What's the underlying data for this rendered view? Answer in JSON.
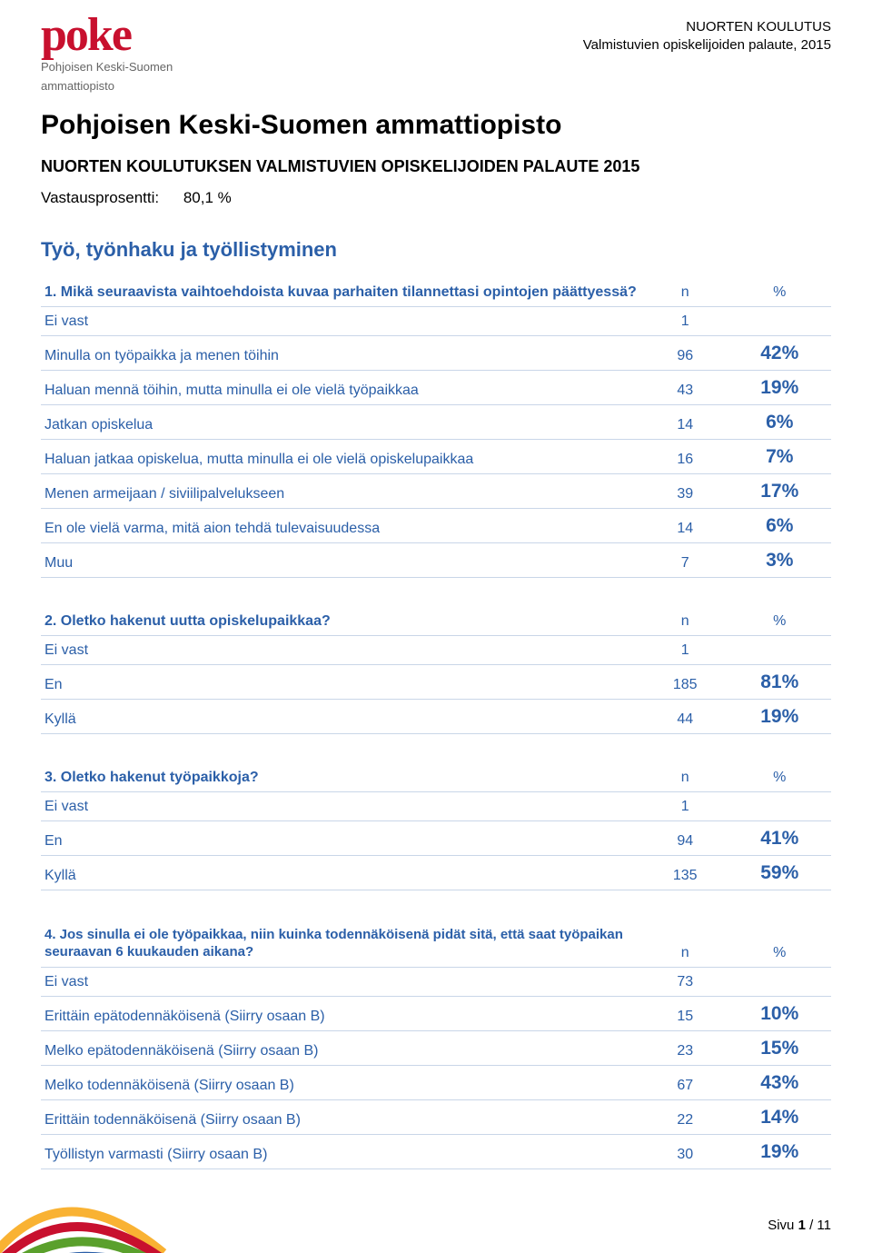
{
  "header": {
    "right1": "NUORTEN KOULUTUS",
    "right2": "Valmistuvien opiskelijoiden palaute, 2015",
    "logo_main": "poke",
    "logo_sub1": "Pohjoisen Keski-Suomen",
    "logo_sub2": "ammattiopisto"
  },
  "title": "Pohjoisen Keski-Suomen ammattiopisto",
  "subtitle": "NUORTEN KOULUTUKSEN VALMISTUVIEN OPISKELIJOIDEN PALAUTE 2015",
  "response_rate_label": "Vastausprosentti:",
  "response_rate_value": "80,1 %",
  "section": "Työ, työnhaku ja työllistyminen",
  "n_label": "n",
  "pct_label": "%",
  "q1": {
    "title": "1. Mikä seuraavista vaihtoehdoista kuvaa parhaiten tilannettasi opintojen päättyessä?",
    "rows": [
      {
        "label": "Ei vast",
        "n": "1",
        "pct": ""
      },
      {
        "label": "Minulla on työpaikka ja menen töihin",
        "n": "96",
        "pct": "42%"
      },
      {
        "label": "Haluan mennä töihin, mutta minulla ei ole vielä työpaikkaa",
        "n": "43",
        "pct": "19%"
      },
      {
        "label": "Jatkan opiskelua",
        "n": "14",
        "pct": "6%"
      },
      {
        "label": "Haluan jatkaa opiskelua, mutta minulla ei ole vielä opiskelupaikkaa",
        "n": "16",
        "pct": "7%"
      },
      {
        "label": "Menen armeijaan / siviilipalvelukseen",
        "n": "39",
        "pct": "17%"
      },
      {
        "label": "En ole vielä varma, mitä aion tehdä tulevaisuudessa",
        "n": "14",
        "pct": "6%"
      },
      {
        "label": "Muu",
        "n": "7",
        "pct": "3%"
      }
    ]
  },
  "q2": {
    "title": "2. Oletko hakenut uutta opiskelupaikkaa?",
    "rows": [
      {
        "label": "Ei vast",
        "n": "1",
        "pct": ""
      },
      {
        "label": "En",
        "n": "185",
        "pct": "81%"
      },
      {
        "label": "Kyllä",
        "n": "44",
        "pct": "19%"
      }
    ]
  },
  "q3": {
    "title": "3. Oletko hakenut työpaikkoja?",
    "rows": [
      {
        "label": "Ei vast",
        "n": "1",
        "pct": ""
      },
      {
        "label": "En",
        "n": "94",
        "pct": "41%"
      },
      {
        "label": "Kyllä",
        "n": "135",
        "pct": "59%"
      }
    ]
  },
  "q4": {
    "title": "4. Jos sinulla ei ole työpaikkaa, niin kuinka todennäköisenä pidät sitä, että saat työpaikan seuraavan 6 kuukauden aikana?",
    "rows": [
      {
        "label": "Ei vast",
        "n": "73",
        "pct": ""
      },
      {
        "label": "Erittäin epätodennäköisenä (Siirry osaan B)",
        "n": "15",
        "pct": "10%"
      },
      {
        "label": "Melko epätodennäköisenä (Siirry osaan B)",
        "n": "23",
        "pct": "15%"
      },
      {
        "label": "Melko todennäköisenä (Siirry osaan B)",
        "n": "67",
        "pct": "43%"
      },
      {
        "label": "Erittäin todennäköisenä (Siirry osaan B)",
        "n": "22",
        "pct": "14%"
      },
      {
        "label": "Työllistyn varmasti (Siirry osaan B)",
        "n": "30",
        "pct": "19%"
      }
    ]
  },
  "footer": {
    "page_label": "Sivu",
    "page_current": "1",
    "page_sep": " / ",
    "page_total": "11"
  },
  "style": {
    "accent_color": "#2b5fa8",
    "logo_color": "#c8102e",
    "border_color": "#c9d6e8",
    "background_color": "#ffffff",
    "curve_colors": [
      "#f9b233",
      "#c8102e",
      "#5aa02c",
      "#2b5fa8"
    ]
  }
}
